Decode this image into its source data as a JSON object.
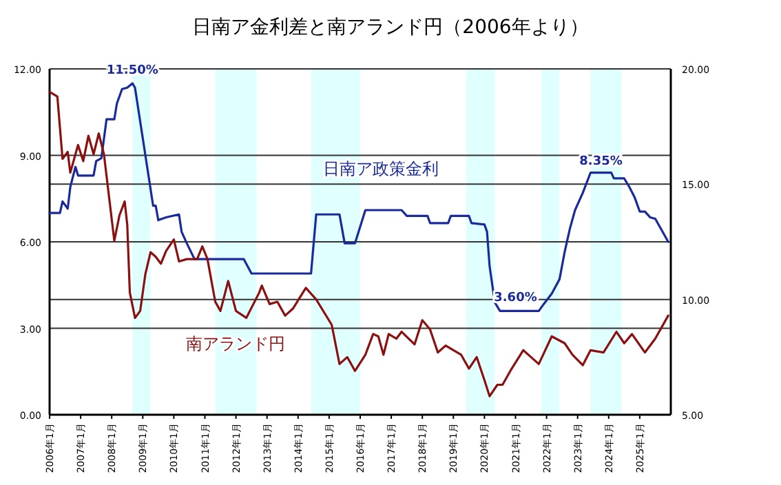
{
  "chart_data": {
    "type": "line",
    "title": "日南ア金利差と南アランド円（2006年より）",
    "xlim": [
      "2006-01",
      "2026-01"
    ],
    "xticks": [
      {
        "value": "2006-01",
        "label": "2006年1月"
      },
      {
        "value": "2007-01",
        "label": "2007年1月"
      },
      {
        "value": "2008-01",
        "label": "2008年1月"
      },
      {
        "value": "2009-01",
        "label": "2009年1月"
      },
      {
        "value": "2010-01",
        "label": "2010年1月"
      },
      {
        "value": "2011-01",
        "label": "2011年1月"
      },
      {
        "value": "2012-01",
        "label": "2012年1月"
      },
      {
        "value": "2013-01",
        "label": "2013年1月"
      },
      {
        "value": "2014-01",
        "label": "2014年1月"
      },
      {
        "value": "2015-01",
        "label": "2015年1月"
      },
      {
        "value": "2016-01",
        "label": "2016年1月"
      },
      {
        "value": "2017-01",
        "label": "2017年1月"
      },
      {
        "value": "2018-01",
        "label": "2018年1月"
      },
      {
        "value": "2019-01",
        "label": "2019年1月"
      },
      {
        "value": "2020-01",
        "label": "2020年1月"
      },
      {
        "value": "2021-01",
        "label": "2021年1月"
      },
      {
        "value": "2022-01",
        "label": "2022年1月"
      },
      {
        "value": "2023-01",
        "label": "2023年1月"
      },
      {
        "value": "2024-01",
        "label": "2024年1月"
      },
      {
        "value": "2025-01",
        "label": "2025年1月"
      }
    ],
    "ylim": [
      0,
      12
    ],
    "yticks": [
      {
        "value": 0,
        "label": "0.00"
      },
      {
        "value": 3,
        "label": "3.00"
      },
      {
        "value": 6,
        "label": "6.00"
      },
      {
        "value": 9,
        "label": "9.00"
      },
      {
        "value": 12,
        "label": "12.00"
      }
    ],
    "y2lim": [
      5,
      20
    ],
    "y2ticks": [
      {
        "value": 5,
        "label": "5.00"
      },
      {
        "value": 10,
        "label": "10.00"
      },
      {
        "value": 15,
        "label": "15.00"
      },
      {
        "value": 20,
        "label": "20.00"
      }
    ],
    "grid": "y",
    "bands": [
      {
        "axis": "x",
        "from": "2008-09",
        "to": "2009-04",
        "color": "#e0ffff"
      },
      {
        "axis": "x",
        "from": "2011-05",
        "to": "2012-09",
        "color": "#e0ffff"
      },
      {
        "axis": "x",
        "from": "2014-06",
        "to": "2016-01",
        "color": "#e0ffff"
      },
      {
        "axis": "x",
        "from": "2019-06",
        "to": "2020-05",
        "color": "#e0ffff"
      },
      {
        "axis": "x",
        "from": "2021-11",
        "to": "2022-06",
        "color": "#e0ffff"
      },
      {
        "axis": "x",
        "from": "2023-06",
        "to": "2024-06",
        "color": "#e0ffff"
      }
    ],
    "annotations": [
      {
        "text": "11.50%",
        "x": "2008-09",
        "y": 11.5
      },
      {
        "text": "3.60%",
        "x": "2021-01",
        "y": 3.6
      },
      {
        "text": "8.35%",
        "x": "2023-10",
        "y": 8.35
      }
    ],
    "series": [
      {
        "name": "日南ア政策金利",
        "color": "#1a2a9a",
        "axis": "y",
        "x": [
          "2006-01",
          "2006-05",
          "2006-06",
          "2006-08",
          "2006-09",
          "2006-11",
          "2006-12",
          "2007-06",
          "2007-07",
          "2007-09",
          "2007-11",
          "2008-02",
          "2008-03",
          "2008-05",
          "2008-07",
          "2008-09",
          "2008-10",
          "2009-05",
          "2009-06",
          "2009-07",
          "2009-10",
          "2010-03",
          "2010-04",
          "2010-06",
          "2010-09",
          "2011-01",
          "2012-04",
          "2012-07",
          "2014-06",
          "2014-08",
          "2015-05",
          "2015-07",
          "2015-11",
          "2016-03",
          "2017-05",
          "2017-07",
          "2018-03",
          "2018-04",
          "2018-11",
          "2018-12",
          "2019-07",
          "2019-08",
          "2020-01",
          "2020-02",
          "2020-03",
          "2020-05",
          "2020-07",
          "2021-10",
          "2021-12",
          "2022-03",
          "2022-06",
          "2022-08",
          "2022-10",
          "2022-12",
          "2023-03",
          "2023-06",
          "2024-02",
          "2024-03",
          "2024-07",
          "2024-09",
          "2024-11",
          "2025-01",
          "2025-03",
          "2025-05",
          "2025-07",
          "2025-12"
        ],
        "values": [
          7.0,
          7.0,
          7.4,
          7.15,
          7.9,
          8.6,
          8.3,
          8.3,
          8.8,
          8.9,
          10.25,
          10.25,
          10.8,
          11.3,
          11.35,
          11.5,
          11.35,
          7.25,
          7.25,
          6.75,
          6.85,
          6.95,
          6.35,
          5.95,
          5.4,
          5.4,
          5.4,
          4.9,
          4.9,
          6.95,
          6.95,
          5.95,
          5.95,
          7.1,
          7.1,
          6.9,
          6.9,
          6.65,
          6.65,
          6.9,
          6.9,
          6.65,
          6.6,
          6.35,
          5.15,
          3.9,
          3.6,
          3.6,
          3.85,
          4.2,
          4.7,
          5.65,
          6.45,
          7.1,
          7.7,
          8.4,
          8.4,
          8.2,
          8.2,
          7.9,
          7.55,
          7.05,
          7.05,
          6.85,
          6.8,
          6.0
        ]
      },
      {
        "name": "南アランド円",
        "color": "#8b1010",
        "axis": "y2",
        "x": [
          "2006-01",
          "2006-04",
          "2006-06",
          "2006-08",
          "2006-09",
          "2006-12",
          "2007-02",
          "2007-04",
          "2007-06",
          "2007-08",
          "2007-10",
          "2008-02",
          "2008-04",
          "2008-06",
          "2008-07",
          "2008-08",
          "2008-10",
          "2008-12",
          "2009-02",
          "2009-04",
          "2009-06",
          "2009-08",
          "2009-10",
          "2010-01",
          "2010-03",
          "2010-06",
          "2010-10",
          "2010-12",
          "2011-02",
          "2011-05",
          "2011-07",
          "2011-10",
          "2012-01",
          "2012-05",
          "2012-10",
          "2012-11",
          "2013-02",
          "2013-05",
          "2013-08",
          "2013-11",
          "2014-04",
          "2014-08",
          "2015-02",
          "2015-05",
          "2015-08",
          "2015-11",
          "2016-03",
          "2016-06",
          "2016-08",
          "2016-10",
          "2016-12",
          "2017-03",
          "2017-05",
          "2017-10",
          "2018-01",
          "2018-04",
          "2018-07",
          "2018-10",
          "2019-04",
          "2019-07",
          "2019-10",
          "2020-01",
          "2020-03",
          "2020-06",
          "2020-08",
          "2020-11",
          "2021-04",
          "2021-07",
          "2021-10",
          "2022-03",
          "2022-08",
          "2022-11",
          "2023-03",
          "2023-06",
          "2023-11",
          "2024-04",
          "2024-07",
          "2024-10",
          "2025-03",
          "2025-07",
          "2025-12"
        ],
        "values": [
          19.0,
          18.8,
          16.1,
          16.4,
          15.5,
          16.7,
          16.0,
          17.1,
          16.3,
          17.2,
          16.3,
          12.55,
          13.65,
          14.25,
          13.25,
          10.3,
          9.2,
          9.5,
          11.1,
          12.05,
          11.85,
          11.55,
          12.1,
          12.6,
          11.65,
          11.75,
          11.75,
          12.3,
          11.75,
          9.9,
          9.5,
          10.8,
          9.5,
          9.2,
          10.3,
          10.6,
          9.8,
          9.9,
          9.3,
          9.6,
          10.5,
          10.0,
          8.9,
          7.2,
          7.5,
          6.9,
          7.6,
          8.5,
          8.4,
          7.6,
          8.5,
          8.3,
          8.6,
          8.05,
          9.1,
          8.7,
          7.7,
          8.0,
          7.6,
          7.0,
          7.5,
          6.5,
          5.8,
          6.3,
          6.3,
          6.9,
          7.8,
          7.5,
          7.2,
          8.4,
          8.1,
          7.6,
          7.15,
          7.8,
          7.7,
          8.6,
          8.1,
          8.5,
          7.7,
          8.3,
          9.3
        ]
      }
    ]
  }
}
